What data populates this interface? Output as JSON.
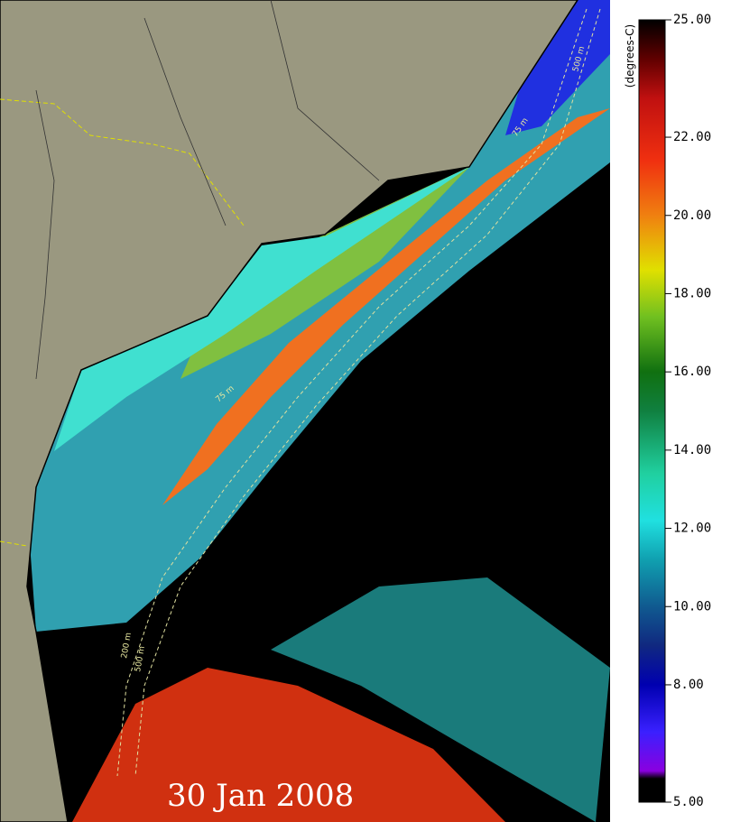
{
  "date": "30 Jan 2008",
  "colorbar": {
    "units": "(degrees-C)",
    "lim": [
      5,
      25
    ],
    "ticks": [
      {
        "value": 25,
        "label": "25.00"
      },
      {
        "value": 22,
        "label": "22.00"
      },
      {
        "value": 20,
        "label": "20.00"
      },
      {
        "value": 18,
        "label": "18.00"
      },
      {
        "value": 16,
        "label": "16.00"
      },
      {
        "value": 14,
        "label": "14.00"
      },
      {
        "value": 12,
        "label": "12.00"
      },
      {
        "value": 10,
        "label": "10.00"
      },
      {
        "value": 8,
        "label": "8.00"
      },
      {
        "value": 5,
        "label": "5.00"
      }
    ]
  },
  "contour_labels": [
    "75 m",
    "500 m",
    "75 m",
    "200 m",
    "500 m"
  ]
}
